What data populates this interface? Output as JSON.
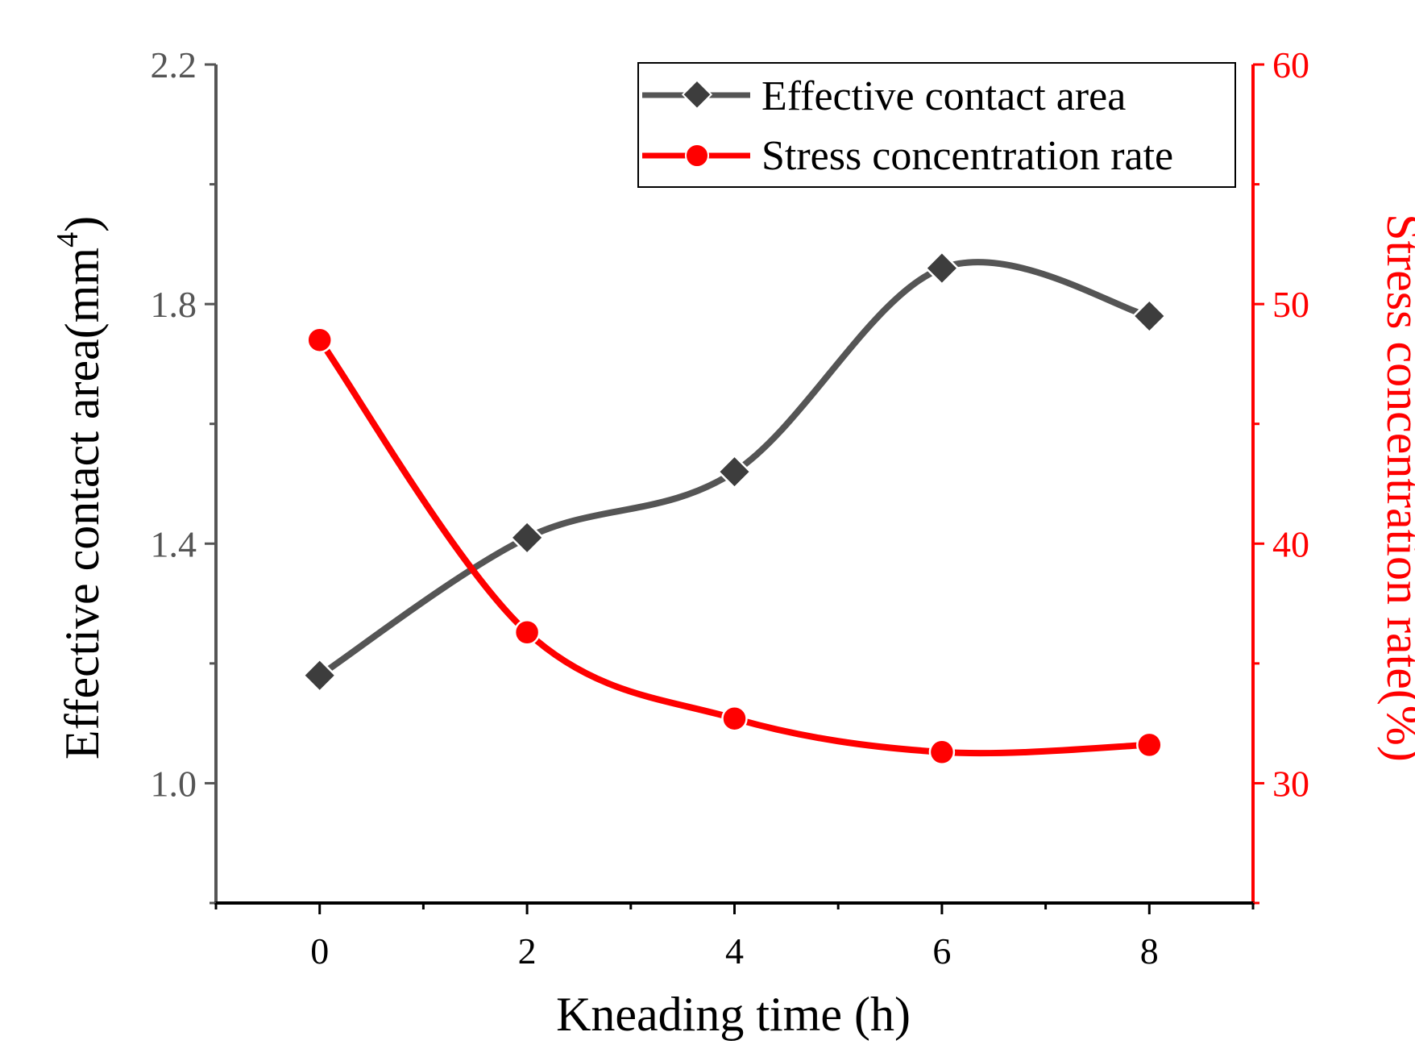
{
  "chart_data": {
    "type": "line",
    "x": [
      0,
      2,
      4,
      6,
      8
    ],
    "xlabel": "Kneading time (h)",
    "xlim": [
      -1,
      9
    ],
    "xticks": [
      "0",
      "2",
      "4",
      "6",
      "8"
    ],
    "ylabel": "Effective contact area(mm",
    "ylabel_sup": "4",
    "ylabel_close": ")",
    "ylim": [
      0.8,
      2.2
    ],
    "yticks": [
      "1.0",
      "1.4",
      "1.8",
      "2.2"
    ],
    "y2label": "Stress concentration rate(%)",
    "y2lim": [
      25,
      60
    ],
    "y2ticks": [
      "30",
      "40",
      "50",
      "60"
    ],
    "legend_position": "top-right",
    "series": [
      {
        "name": "Effective contact area",
        "axis": "left",
        "marker": "diamond",
        "color": "#3d3d3d",
        "values": [
          1.18,
          1.41,
          1.52,
          1.86,
          1.78
        ]
      },
      {
        "name": "Stress concentration rate",
        "axis": "right",
        "marker": "circle",
        "color": "#ff0000",
        "values": [
          48.5,
          36.3,
          32.7,
          31.3,
          31.6
        ]
      }
    ],
    "colors": {
      "left_axis": "#555555",
      "right_axis": "#ff0000",
      "bottom_axis": "#000000"
    }
  }
}
